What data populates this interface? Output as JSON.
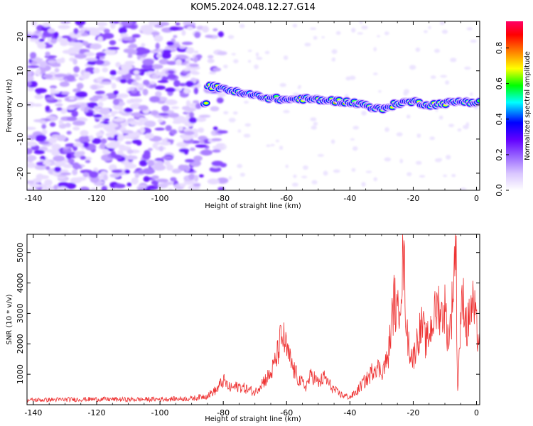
{
  "title": "KOM5.2024.048.12.27.G14",
  "chart_data": [
    {
      "type": "heatmap",
      "xlabel": "Height of straight line (km)",
      "ylabel": "Frequency (Hz)",
      "xlim": [
        -142,
        1
      ],
      "ylim": [
        -25,
        24.5
      ],
      "xticks": [
        -140,
        -120,
        -100,
        -80,
        -60,
        -40,
        -20,
        0
      ],
      "yticks": [
        -20,
        -10,
        0,
        10,
        20
      ],
      "colorbar": {
        "label": "Normalized spectral amplitude",
        "range": [
          0,
          0.95
        ],
        "ticks": [
          "0.0",
          "0.2",
          "0.4",
          "0.6",
          "0.8"
        ],
        "colors": [
          "#ffffff",
          "#d9c6ff",
          "#9966ff",
          "#6200ff",
          "#0000ff",
          "#00ffff",
          "#00ff00",
          "#ffff00",
          "#ff8000",
          "#ff0000",
          "#ff0066"
        ]
      },
      "signal_track": {
        "x": [
          -85,
          -80,
          -75,
          -70,
          -65,
          -60,
          -55,
          -50,
          -45,
          -40,
          -35,
          -30,
          -25,
          -20,
          -15,
          -10,
          -5,
          0
        ],
        "freq": [
          5.5,
          5.0,
          3.5,
          2.8,
          2.0,
          1.5,
          1.8,
          1.5,
          1.2,
          0.8,
          0.0,
          -1.5,
          0.5,
          1.0,
          0.0,
          0.5,
          1.0,
          0.8
        ]
      }
    },
    {
      "type": "line",
      "xlabel": "Height of straight line (km)",
      "ylabel": "SNR (10 * v/v)",
      "xlim": [
        -142,
        1
      ],
      "ylim": [
        0,
        5600
      ],
      "xticks": [
        -140,
        -120,
        -100,
        -80,
        -60,
        -40,
        -20,
        0
      ],
      "yticks": [
        1000,
        2000,
        3000,
        4000,
        5000
      ],
      "color": "#ee3333",
      "series": [
        {
          "x": [
            -142,
            -130,
            -120,
            -110,
            -100,
            -90,
            -85,
            -82,
            -80,
            -78,
            -75,
            -72,
            -70,
            -68,
            -65,
            -63,
            -62,
            -61,
            -60,
            -59,
            -58,
            -56,
            -54,
            -52,
            -50,
            -48,
            -46,
            -44,
            -42,
            -40,
            -38,
            -36,
            -34,
            -32,
            -30,
            -28,
            -27,
            -26,
            -25,
            -24,
            -23,
            -22,
            -21,
            -20,
            -19,
            -18,
            -17,
            -16,
            -15,
            -14,
            -13,
            -12,
            -11,
            -10,
            -9,
            -8,
            -7,
            -6.5,
            -6,
            -5,
            -4,
            -3,
            -2,
            -1,
            0,
            1
          ],
          "y": [
            150,
            170,
            180,
            170,
            180,
            200,
            300,
            500,
            800,
            550,
            600,
            500,
            400,
            700,
            1000,
            1600,
            2100,
            2200,
            1800,
            1500,
            1200,
            800,
            600,
            1000,
            700,
            900,
            600,
            400,
            300,
            250,
            400,
            700,
            900,
            1300,
            1100,
            1500,
            2500,
            3500,
            2800,
            3900,
            4800,
            2300,
            1800,
            1500,
            2000,
            2400,
            2600,
            2000,
            2300,
            2700,
            3000,
            3300,
            2900,
            3200,
            2200,
            2800,
            4600,
            5500,
            300,
            2900,
            3500,
            2400,
            3100,
            3300,
            2500,
            2000
          ]
        }
      ]
    }
  ]
}
